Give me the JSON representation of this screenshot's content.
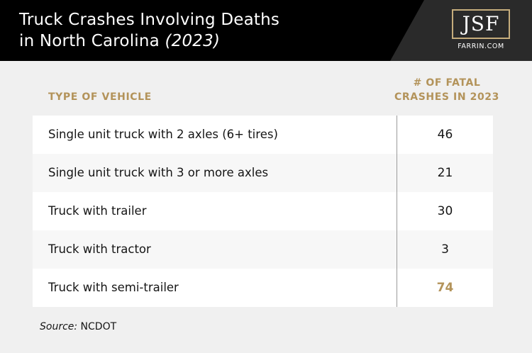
{
  "header": {
    "title_line1": "Truck Crashes Involving Deaths",
    "title_line2": "in North Carolina",
    "title_year": "(2023)"
  },
  "logo": {
    "mark": "JSF",
    "sub": "FARRIN.COM"
  },
  "table": {
    "col_type": "TYPE OF VEHICLE",
    "col_count_line1": "# OF FATAL",
    "col_count_line2": "CRASHES IN 2023",
    "rows": [
      {
        "label": "Single unit truck with 2 axles (6+ tires)",
        "value": "46"
      },
      {
        "label": "Single unit truck with 3 or more axles",
        "value": "21"
      },
      {
        "label": "Truck with trailer",
        "value": "30"
      },
      {
        "label": "Truck with tractor",
        "value": "3"
      },
      {
        "label": "Truck with semi-trailer",
        "value": "74"
      }
    ]
  },
  "source": {
    "prefix": "Source:",
    "text": " NCDOT"
  },
  "colors": {
    "accent": "#b3935a",
    "header_bg": "#000000",
    "page_bg": "#f0f0f0"
  }
}
